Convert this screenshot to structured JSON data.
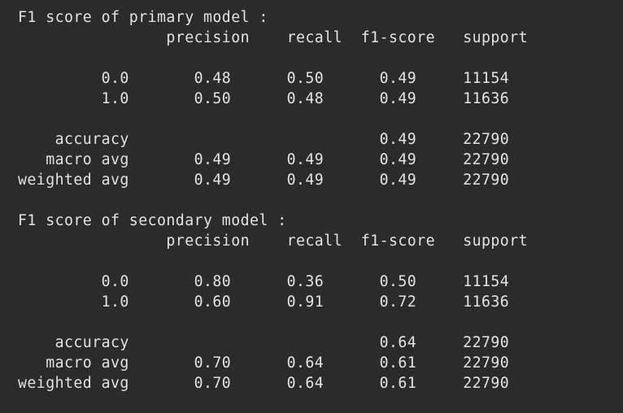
{
  "output": {
    "primary": {
      "heading": "F1 score of primary model :",
      "header_row": "                precision    recall  f1-score   support",
      "rows": [
        "         0.0       0.48      0.50      0.49     11154",
        "         1.0       0.50      0.48      0.49     11636",
        "    accuracy                           0.49     22790",
        "   macro avg       0.49      0.49      0.49     22790",
        "weighted avg       0.49      0.49      0.49     22790"
      ]
    },
    "secondary": {
      "heading": "F1 score of secondary model :",
      "header_row": "                precision    recall  f1-score   support",
      "rows": [
        "         0.0       0.80      0.36      0.50     11154",
        "         1.0       0.60      0.91      0.72     11636",
        "    accuracy                           0.64     22790",
        "   macro avg       0.70      0.64      0.61     22790",
        "weighted avg       0.70      0.64      0.61     22790"
      ]
    }
  },
  "colors": {
    "background": "#2b2b2b",
    "text": "#e3e3e3"
  }
}
